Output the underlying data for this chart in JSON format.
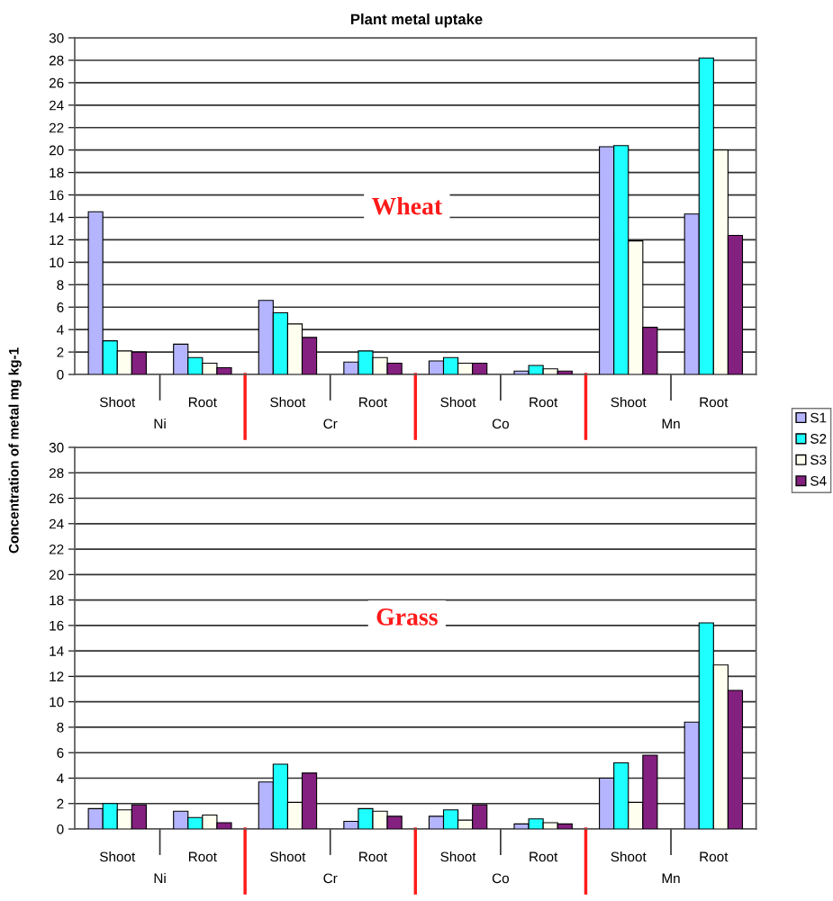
{
  "chart_data": [
    {
      "type": "bar",
      "title": "Plant metal uptake",
      "ylabel": "Concentration of metal mg kg-1",
      "categories": [
        "Shoot",
        "Root",
        "Shoot",
        "Root",
        "Shoot",
        "Root",
        "Shoot",
        "Root"
      ],
      "series": [
        {
          "name": "S1",
          "color": "#b4b4ff",
          "values": [
            14.5,
            2.7,
            6.6,
            1.1,
            1.2,
            0.3,
            20.3,
            14.3
          ]
        },
        {
          "name": "S2",
          "color": "#1effff",
          "values": [
            3.0,
            1.5,
            5.5,
            2.1,
            1.5,
            0.8,
            20.4,
            28.2
          ]
        },
        {
          "name": "S3",
          "color": "#fffff0",
          "values": [
            2.1,
            1.0,
            4.5,
            1.5,
            1.0,
            0.5,
            11.9,
            20.0
          ]
        },
        {
          "name": "S4",
          "color": "#84207f",
          "values": [
            2.0,
            0.6,
            3.3,
            1.0,
            1.0,
            0.3,
            4.2,
            12.4
          ]
        }
      ],
      "annotations": [
        "Wheat",
        "Ni",
        "Cr",
        "Co",
        "Mn"
      ],
      "ylim": [
        0,
        30
      ],
      "yticks": [
        0,
        2,
        4,
        6,
        8,
        10,
        12,
        14,
        16,
        18,
        20,
        22,
        24,
        26,
        28,
        30
      ],
      "grid": "y",
      "legend": "right"
    },
    {
      "type": "bar",
      "categories": [
        "Shoot",
        "Root",
        "Shoot",
        "Root",
        "Shoot",
        "Root",
        "Shoot",
        "Root"
      ],
      "series": [
        {
          "color": "#b4b4ff",
          "values": [
            1.6,
            1.4,
            3.7,
            0.6,
            1.0,
            0.4,
            4.0,
            8.4
          ]
        },
        {
          "color": "#1effff",
          "values": [
            2.0,
            0.9,
            5.1,
            1.6,
            1.5,
            0.8,
            5.2,
            16.2
          ]
        },
        {
          "color": "#fffff0",
          "values": [
            1.5,
            1.1,
            2.1,
            1.4,
            0.7,
            0.5,
            2.1,
            12.9
          ]
        },
        {
          "color": "#84207f",
          "values": [
            1.9,
            0.5,
            4.4,
            1.0,
            1.9,
            0.4,
            5.8,
            10.9
          ]
        }
      ],
      "annotations": [
        "Grass",
        "Ni",
        "Cr",
        "Co",
        "Mn"
      ],
      "ylim": [
        0,
        30
      ],
      "yticks": [
        0,
        2,
        4,
        6,
        8,
        10,
        12,
        14,
        16,
        18,
        20,
        22,
        24,
        26,
        28,
        30
      ],
      "grid": "y",
      "legend": false
    }
  ]
}
